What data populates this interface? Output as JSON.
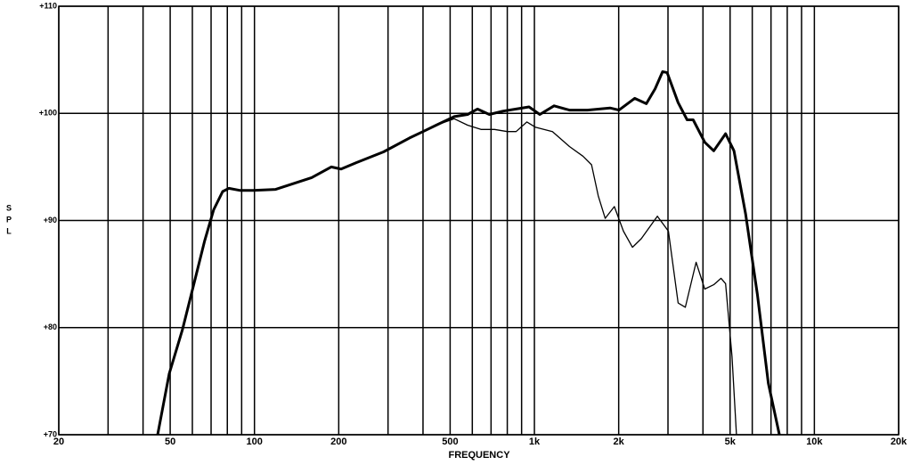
{
  "chart_data": {
    "type": "line",
    "xlabel": "FREQUENCY",
    "ylabel": "SPL",
    "xscale": "log",
    "grid": true,
    "xlim": [
      20,
      20000
    ],
    "ylim": [
      70,
      110
    ],
    "xticks": [
      20,
      50,
      100,
      200,
      500,
      {
        "value": 1000,
        "label": "1k"
      },
      {
        "value": 2000,
        "label": "2k"
      },
      {
        "value": 5000,
        "label": "5k"
      },
      {
        "value": 10000,
        "label": "10k"
      },
      {
        "value": 20000,
        "label": "20k"
      }
    ],
    "xminor": [
      30,
      40,
      60,
      70,
      80,
      90,
      300,
      400,
      600,
      700,
      800,
      900,
      3000,
      4000,
      6000,
      7000,
      8000,
      9000
    ],
    "yticks": [
      {
        "value": 70,
        "label": "+70"
      },
      {
        "value": 80,
        "label": "+80"
      },
      {
        "value": 90,
        "label": "+90"
      },
      {
        "value": 100,
        "label": "+100"
      },
      {
        "value": 110,
        "label": "+110"
      }
    ],
    "series": [
      {
        "color": "#000000",
        "width": 3,
        "x": [
          45.1,
          49.6,
          55.3,
          60.8,
          66.4,
          71.5,
          77,
          81,
          89,
          99,
          119,
          160,
          188,
          204,
          231,
          289,
          358,
          400,
          446,
          517,
          577,
          626,
          690,
          770,
          860,
          957,
          1045,
          1175,
          1334,
          1547,
          1862,
          2005,
          2280,
          2510,
          2700,
          2870,
          2980,
          3260,
          3510,
          3690,
          4060,
          4370,
          4820,
          5160,
          5680,
          6260,
          6850,
          7500
        ],
        "values": [
          70,
          75.7,
          79.8,
          84.1,
          88.1,
          91.0,
          92.7,
          93.0,
          92.8,
          92.8,
          92.9,
          94.0,
          95.0,
          94.8,
          95.4,
          96.4,
          97.7,
          98.3,
          98.9,
          99.7,
          99.9,
          100.4,
          99.9,
          100.2,
          100.4,
          100.6,
          99.9,
          100.7,
          100.3,
          100.3,
          100.5,
          100.3,
          101.4,
          100.9,
          102.3,
          103.9,
          103.8,
          101.0,
          99.4,
          99.4,
          97.3,
          96.5,
          98.1,
          96.5,
          90.6,
          83.1,
          74.8,
          70
        ]
      },
      {
        "color": "#000000",
        "width": 1.3,
        "x": [
          446,
          517,
          577,
          644,
          720,
          800,
          860,
          940,
          1010,
          1160,
          1334,
          1490,
          1600,
          1690,
          1790,
          1930,
          2080,
          2240,
          2410,
          2750,
          3010,
          3260,
          3460,
          3780,
          4060,
          4370,
          4640,
          4820,
          5080,
          5270
        ],
        "values": [
          98.9,
          99.5,
          98.9,
          98.5,
          98.5,
          98.3,
          98.3,
          99.2,
          98.7,
          98.3,
          96.9,
          96.0,
          95.2,
          92.3,
          90.2,
          91.3,
          89.0,
          87.5,
          88.3,
          90.4,
          89.0,
          82.3,
          81.9,
          86.1,
          83.6,
          84.0,
          84.6,
          84.1,
          77.3,
          70
        ]
      }
    ]
  }
}
